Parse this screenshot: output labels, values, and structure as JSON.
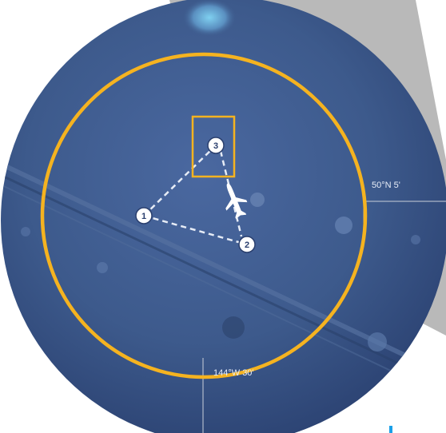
{
  "map": {
    "coordinates": {
      "latitude_label": "50°N 5'",
      "longitude_label": "144°W 30'"
    },
    "waypoints": [
      {
        "number": "1"
      },
      {
        "number": "2"
      },
      {
        "number": "3"
      }
    ],
    "colors": {
      "seafloor": "#3d5a8c",
      "seafloor_dark": "#2e4776",
      "search_ring": "#f5b320",
      "route": "#e6ecf6",
      "backdrop": "#b9b9b9",
      "gridline": "#c9cfd9"
    },
    "icons": [
      "aircraft-icon",
      "highlight-box"
    ]
  }
}
